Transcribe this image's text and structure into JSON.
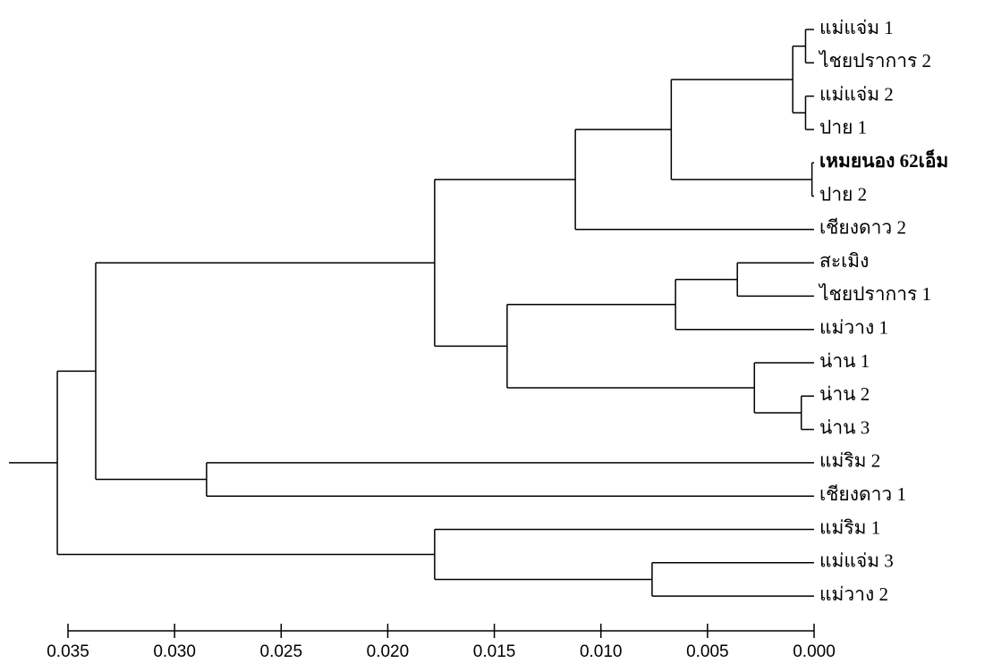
{
  "chart_data": {
    "type": "dendrogram",
    "xlim": [
      0.035,
      0
    ],
    "xticks": [
      0.035,
      {
        "value": 0.03,
        "label": "0.030"
      },
      0.025,
      {
        "value": 0.02,
        "label": "0.020"
      },
      0.015,
      {
        "value": 0.01,
        "label": "0.010"
      },
      0.005,
      {
        "value": 0,
        "label": "0.000"
      }
    ],
    "color": "#000000",
    "tree": {
      "height": 0.0355,
      "children": [
        {
          "height": 0.0337,
          "children": [
            {
              "height": 0.0178,
              "children": [
                {
                  "height": 0.0112,
                  "children": [
                    {
                      "height": 0.0067,
                      "children": [
                        {
                          "height": 0.001,
                          "children": [
                            {
                              "height": 0.0004,
                              "children": [
                                {
                                  "label": "แม่แจ่ม 1"
                                },
                                {
                                  "label": "ไชยปราการ 2"
                                }
                              ]
                            },
                            {
                              "height": 0.0004,
                              "children": [
                                {
                                  "label": "แม่แจ่ม 2"
                                },
                                {
                                  "label": "ปาย 1"
                                }
                              ]
                            }
                          ]
                        },
                        {
                          "height": 0.0001,
                          "children": [
                            {
                              "label": "เหมยนอง 62เอ็ม",
                              "bold": true
                            },
                            {
                              "label": "ปาย 2"
                            }
                          ]
                        }
                      ]
                    },
                    {
                      "label": "เชียงดาว 2"
                    }
                  ]
                },
                {
                  "height": 0.0144,
                  "children": [
                    {
                      "height": 0.0065,
                      "children": [
                        {
                          "height": 0.0036,
                          "children": [
                            {
                              "label": "สะเมิง"
                            },
                            {
                              "label": "ไชยปราการ 1"
                            }
                          ]
                        },
                        {
                          "label": "แม่วาง 1"
                        }
                      ]
                    },
                    {
                      "height": 0.0028,
                      "children": [
                        {
                          "label": "น่าน 1"
                        },
                        {
                          "height": 0.0006,
                          "children": [
                            {
                              "label": "น่าน 2"
                            },
                            {
                              "label": "น่าน 3"
                            }
                          ]
                        }
                      ]
                    }
                  ]
                }
              ]
            },
            {
              "height": 0.0285,
              "children": [
                {
                  "label": "แม่ริม 2"
                },
                {
                  "label": "เชียงดาว 1"
                }
              ]
            }
          ]
        },
        {
          "height": 0.0178,
          "children": [
            {
              "label": "แม่ริม 1"
            },
            {
              "height": 0.0076,
              "children": [
                {
                  "label": "แม่แจ่ม 3"
                },
                {
                  "label": "แม่วาง 2"
                }
              ]
            }
          ]
        }
      ]
    }
  }
}
